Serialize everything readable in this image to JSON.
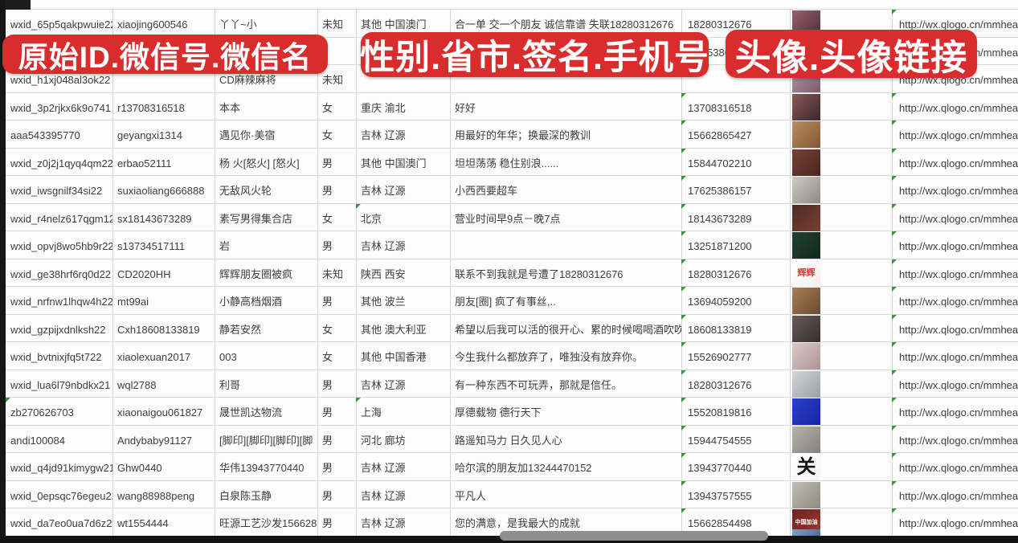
{
  "banners": {
    "left": "原始ID.微信号.微信名",
    "middle": "性别.省市.签名.手机号",
    "right": "头像.头像链接"
  },
  "colors": {
    "banner_red": "#d92c2c",
    "grid_gray": "#d6d6d6",
    "flag_green": "#3f9142",
    "text": "#3e3e3e"
  },
  "avatar_link_text": "http://wx.qlogo.cn/mmhead",
  "rows": [
    {
      "id": "wxid_65p5qakpwuie22",
      "wechat_id": "xiaojing600546",
      "name": "丫丫~小",
      "gender": "未知",
      "region": "其他 中国澳门",
      "signature": "合一单 交一个朋友 诚信靠谱 失联18280312676",
      "phone": "18280312676",
      "link": "http://wx.qlogo.cn/mmhead",
      "avatar": {
        "c1": "#9a5e6c",
        "c2": "#4a303c"
      }
    },
    {
      "id": "",
      "wechat_id": "",
      "name": "",
      "gender": "",
      "region": "",
      "signature": "",
      "phone": "5386",
      "phone_pad": 32,
      "phone_flag": true,
      "link": "http://wx.qlogo.cn/mmhead",
      "avatar": null
    },
    {
      "id": "wxid_h1xj048al3ok22",
      "wechat_id": "",
      "name": "CD麻辣麻将",
      "gender": "未知",
      "region": "",
      "signature": "",
      "phone": "",
      "link": "http://wx.qlogo.cn/mmhead",
      "avatar": {
        "c1": "#b295a2",
        "c2": "#7c5c6c"
      }
    },
    {
      "id": "wxid_3p2rjkx6k9o741",
      "wechat_id": "r13708316518",
      "name": "本本",
      "gender": "女",
      "region": "重庆 渝北",
      "signature": "好好",
      "phone": "13708316518",
      "phone_flag": true,
      "link": "http://wx.qlogo.cn/mmhead",
      "avatar": {
        "c1": "#8a5a56",
        "c2": "#3a262c"
      }
    },
    {
      "id": "aaa543395770",
      "wechat_id": "geyangxi1314",
      "name": "遇见你·美宿",
      "gender": "女",
      "region": "吉林 辽源",
      "signature": "用最好的年华；换最深的教训",
      "phone": "15662865427",
      "phone_flag": true,
      "link": "http://wx.qlogo.cn/mmhead",
      "avatar": {
        "c1": "#bb8d5e",
        "c2": "#855636"
      }
    },
    {
      "id": "wxid_z0j2j1qyq4qm22",
      "wechat_id": "erbao52111",
      "name": "杨 火[怒火] [怒火]",
      "gender": "男",
      "region": "其他 中国澳门",
      "signature": "坦坦荡荡 稳住别浪......",
      "phone": "15844702210",
      "phone_flag": true,
      "link": "http://wx.qlogo.cn/mmhead",
      "avatar": {
        "c1": "#7a3f36",
        "c2": "#46281f"
      }
    },
    {
      "id": "wxid_iwsgnilf34si22",
      "wechat_id": "suxiaoliang666888",
      "name": "无敌风火轮",
      "gender": "男",
      "region": "吉林 辽源",
      "signature": "小西西要超车",
      "phone": "17625386157",
      "phone_flag": true,
      "link": "http://wx.qlogo.cn/mmhead",
      "avatar": {
        "c1": "#d0cac4",
        "c2": "#8e8984"
      }
    },
    {
      "id": "wxid_r4nelz617qgm12",
      "wechat_id": "sx18143673289",
      "name": "素写男得集合店",
      "gender": "女",
      "region": "北京",
      "region_flag": true,
      "signature": "营业时间早9点－晚7点",
      "phone": "18143673289",
      "phone_flag": true,
      "link": "http://wx.qlogo.cn/mmhead",
      "avatar": {
        "c1": "#4c2e27",
        "c2": "#7c3c30"
      }
    },
    {
      "id": "wxid_opvj8wo5hb9r22",
      "wechat_id": "s13734517111",
      "name": "岩",
      "gender": "男",
      "region": "吉林 辽源",
      "signature": "",
      "phone": "13251871200",
      "phone_flag": true,
      "link": "http://wx.qlogo.cn/mmhead",
      "avatar": {
        "c1": "#224031",
        "c2": "#12291c"
      }
    },
    {
      "id": "wxid_ge38hrf6rq0d22",
      "wechat_id": "CD2020HH",
      "name": "辉辉朋友圈被疯",
      "gender": "未知",
      "region": "陕西 西安",
      "signature": "联系不到我就是号遭了18280312676",
      "phone": "18280312676",
      "phone_flag": true,
      "link": "http://wx.qlogo.cn/mmhead",
      "avatar": {
        "c1": "#ffffff",
        "c2": "#f4eeee",
        "label": "辉辉",
        "label_color": "#e03a2e",
        "label_size": 11
      }
    },
    {
      "id": "wxid_nrfnw1lhqw4h22",
      "wechat_id": "mt99ai",
      "name": "小静高档烟酒",
      "gender": "男",
      "region": "其他 波兰",
      "signature": "朋友[圈] 疯了有事丝,..",
      "phone": "13694059200",
      "phone_flag": true,
      "link": "http://wx.qlogo.cn/mmhead",
      "avatar": {
        "c1": "#a97f55",
        "c2": "#694a30"
      }
    },
    {
      "id": "wxid_gzpijxdnlksh22",
      "wechat_id": "Cxh18608133819",
      "name": "静若安然",
      "gender": "女",
      "region": "其他 澳大利亚",
      "signature": "希望以后我可以活的很开心、累的时候喝喝酒吹吹[",
      "phone": "18608133819",
      "phone_flag": true,
      "link": "http://wx.qlogo.cn/mmhead",
      "avatar": {
        "c1": "#6a5a58",
        "c2": "#362e30"
      }
    },
    {
      "id": "wxid_bvtnixjfq5t722",
      "wechat_id": "xiaolexuan2017",
      "name": "003",
      "gender": "女",
      "region": "其他 中国香港",
      "signature": "今生我什么都放弃了，唯独没有放弃你。",
      "phone": "15526902777",
      "phone_flag": true,
      "link": "http://wx.qlogo.cn/mmhead",
      "avatar": {
        "c1": "#dcc6c6",
        "c2": "#ab9595"
      }
    },
    {
      "id": "wxid_lua6l79nbdkx21",
      "wechat_id": "wql2788",
      "name": "利哥",
      "gender": "男",
      "region": "吉林 辽源",
      "signature": "有一种东西不可玩弄，那就是信任。",
      "phone": "18280312676",
      "phone_flag": true,
      "link": "http://wx.qlogo.cn/mmhead",
      "avatar": {
        "c1": "#d2d6da",
        "c2": "#97a0a7"
      }
    },
    {
      "id": "zb270626703",
      "id_flag": true,
      "wechat_id": "xiaonaigou061827",
      "name": "晟世凯达物流",
      "gender": "男",
      "region": "上海",
      "region_flag": true,
      "signature": "厚德载物 德行天下",
      "phone": "15520819816",
      "phone_flag": true,
      "link": "http://wx.qlogo.cn/mmhead",
      "avatar": {
        "c1": "#2b3fd0",
        "c2": "#15279e"
      }
    },
    {
      "id": "andi100084",
      "wechat_id": "Andybaby91127",
      "name": "[脚印][脚印][脚印][脚",
      "gender": "男",
      "region": "河北 廊坊",
      "signature": "路遥知马力 日久见人心",
      "phone": "15944754555",
      "phone_flag": true,
      "link": "http://wx.qlogo.cn/mmhead",
      "avatar": {
        "c1": "#b6b2ac",
        "c2": "#84807a"
      }
    },
    {
      "id": "wxid_q4jd91kimygw21",
      "wechat_id": "Ghw0440",
      "name": "华伟13943770440",
      "gender": "男",
      "region": "吉林 辽源",
      "signature": "哈尔滨的朋友加13244470152",
      "phone": "13943770440",
      "phone_flag": true,
      "link": "http://wx.qlogo.cn/mmhead",
      "avatar": {
        "c1": "#ffffff",
        "c2": "#f2f2f0",
        "label": "关",
        "label_color": "#151515",
        "label_size": 24
      }
    },
    {
      "id": "wxid_0epsqc76egeu22",
      "wechat_id": "wang88988peng",
      "name": "白泉陈玉静",
      "gender": "男",
      "region": "吉林 辽源",
      "signature": "平凡人",
      "phone": "13943757555",
      "phone_flag": true,
      "link": "http://wx.qlogo.cn/mmhead",
      "avatar": {
        "c1": "#c2beb6",
        "c2": "#8e8a82"
      }
    },
    {
      "id": "wxid_da7eo0ua7d6z22",
      "wechat_id": "wt1554444",
      "name": "旺源工艺沙发15662854",
      "gender": "男",
      "region": "吉林 辽源",
      "signature": "您的满意，是我最大的成就",
      "phone": "15662854498",
      "phone_flag": true,
      "link": "http://wx.qlogo.cn/mmhead",
      "avatar": {
        "c1": "#6a2420",
        "c2": "#9a3a30",
        "label": "中国加油",
        "label_color": "#ffffff",
        "label_size": 7
      }
    }
  ],
  "partial_bottom_avatar": {
    "c1": "#7ca3c8",
    "c2": "#4a6f96"
  }
}
